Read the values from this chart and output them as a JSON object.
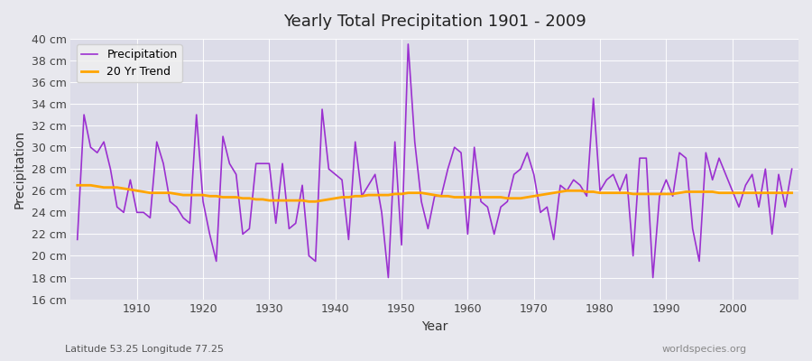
{
  "title": "Yearly Total Precipitation 1901 - 2009",
  "xlabel": "Year",
  "ylabel": "Precipitation",
  "subtitle": "Latitude 53.25 Longitude 77.25",
  "watermark": "worldspecies.org",
  "precip_color": "#9B30D0",
  "trend_color": "#FFA500",
  "bg_color": "#E8E8EE",
  "plot_bg_color": "#DCDCE8",
  "ylim": [
    16,
    40
  ],
  "yticks": [
    16,
    18,
    20,
    22,
    24,
    26,
    28,
    30,
    32,
    34,
    36,
    38,
    40
  ],
  "years": [
    1901,
    1902,
    1903,
    1904,
    1905,
    1906,
    1907,
    1908,
    1909,
    1910,
    1911,
    1912,
    1913,
    1914,
    1915,
    1916,
    1917,
    1918,
    1919,
    1920,
    1921,
    1922,
    1923,
    1924,
    1925,
    1926,
    1927,
    1928,
    1929,
    1930,
    1931,
    1932,
    1933,
    1934,
    1935,
    1936,
    1937,
    1938,
    1939,
    1940,
    1941,
    1942,
    1943,
    1944,
    1945,
    1946,
    1947,
    1948,
    1949,
    1950,
    1951,
    1952,
    1953,
    1954,
    1955,
    1956,
    1957,
    1958,
    1959,
    1960,
    1961,
    1962,
    1963,
    1964,
    1965,
    1966,
    1967,
    1968,
    1969,
    1970,
    1971,
    1972,
    1973,
    1974,
    1975,
    1976,
    1977,
    1978,
    1979,
    1980,
    1981,
    1982,
    1983,
    1984,
    1985,
    1986,
    1987,
    1988,
    1989,
    1990,
    1991,
    1992,
    1993,
    1994,
    1995,
    1996,
    1997,
    1998,
    1999,
    2000,
    2001,
    2002,
    2003,
    2004,
    2005,
    2006,
    2007,
    2008,
    2009
  ],
  "precipitation": [
    21.5,
    33.0,
    30.0,
    29.5,
    30.5,
    28.0,
    24.5,
    24.0,
    27.0,
    24.0,
    24.0,
    23.5,
    30.5,
    28.5,
    25.0,
    24.5,
    23.5,
    23.0,
    33.0,
    25.0,
    22.0,
    19.5,
    31.0,
    28.5,
    27.5,
    22.0,
    22.5,
    28.5,
    28.5,
    28.5,
    23.0,
    28.5,
    22.5,
    23.0,
    26.5,
    20.0,
    19.5,
    33.5,
    28.0,
    27.5,
    27.0,
    21.5,
    30.5,
    25.5,
    26.5,
    27.5,
    24.0,
    18.0,
    30.5,
    21.0,
    39.5,
    30.5,
    25.0,
    22.5,
    25.5,
    25.5,
    28.0,
    30.0,
    29.5,
    22.0,
    30.0,
    25.0,
    24.5,
    22.0,
    24.5,
    25.0,
    27.5,
    28.0,
    29.5,
    27.5,
    24.0,
    24.5,
    21.5,
    26.5,
    26.0,
    27.0,
    26.5,
    25.5,
    34.5,
    26.0,
    27.0,
    27.5,
    26.0,
    27.5,
    20.0,
    29.0,
    29.0,
    18.0,
    25.5,
    27.0,
    25.5,
    29.5,
    29.0,
    22.5,
    19.5,
    29.5,
    27.0,
    29.0,
    27.5,
    26.0,
    24.5,
    26.5,
    27.5,
    24.5,
    28.0,
    22.0,
    27.5,
    24.5,
    28.0
  ],
  "trend": [
    26.5,
    26.5,
    26.5,
    26.4,
    26.3,
    26.3,
    26.3,
    26.2,
    26.1,
    26.0,
    25.9,
    25.8,
    25.8,
    25.8,
    25.8,
    25.7,
    25.6,
    25.6,
    25.6,
    25.6,
    25.5,
    25.5,
    25.4,
    25.4,
    25.4,
    25.3,
    25.3,
    25.2,
    25.2,
    25.1,
    25.1,
    25.1,
    25.1,
    25.1,
    25.1,
    25.0,
    25.0,
    25.1,
    25.2,
    25.3,
    25.4,
    25.4,
    25.5,
    25.5,
    25.6,
    25.6,
    25.6,
    25.6,
    25.7,
    25.7,
    25.8,
    25.8,
    25.8,
    25.7,
    25.6,
    25.5,
    25.5,
    25.4,
    25.4,
    25.4,
    25.4,
    25.4,
    25.4,
    25.4,
    25.4,
    25.3,
    25.3,
    25.3,
    25.4,
    25.5,
    25.6,
    25.7,
    25.8,
    25.9,
    26.0,
    26.0,
    26.0,
    25.9,
    25.9,
    25.8,
    25.8,
    25.8,
    25.8,
    25.8,
    25.7,
    25.7,
    25.7,
    25.7,
    25.7,
    25.7,
    25.7,
    25.8,
    25.9,
    25.9,
    25.9,
    25.9,
    25.9,
    25.8,
    25.8,
    25.8,
    25.8,
    25.8,
    25.8,
    25.8,
    25.8,
    25.8,
    25.8,
    25.8,
    25.8
  ]
}
